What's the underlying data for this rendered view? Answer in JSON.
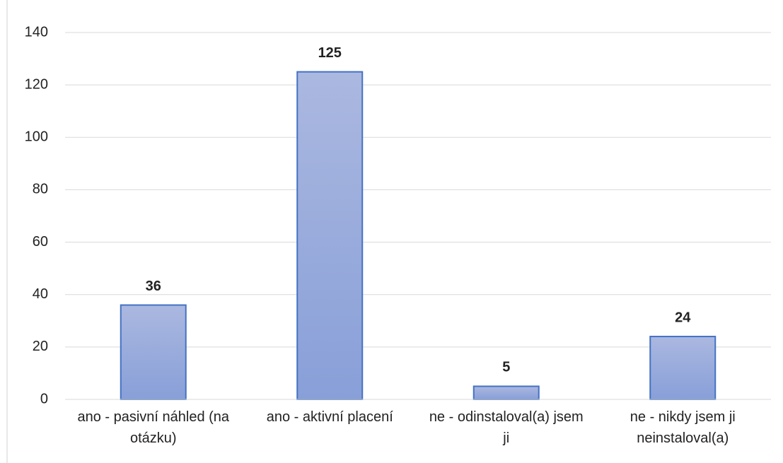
{
  "chart_data": {
    "type": "bar",
    "categories": [
      "ano - pasivní náhled (na otázku)",
      "ano - aktivní placení",
      "ne - odinstaloval(a) jsem ji",
      "ne - nikdy jsem ji neinstaloval(a)"
    ],
    "values": [
      36,
      125,
      5,
      24
    ],
    "color": "#4472c4",
    "ylim": [
      0,
      140
    ],
    "yticks": [
      0,
      20,
      40,
      60,
      80,
      100,
      120,
      140
    ],
    "grid": true
  }
}
